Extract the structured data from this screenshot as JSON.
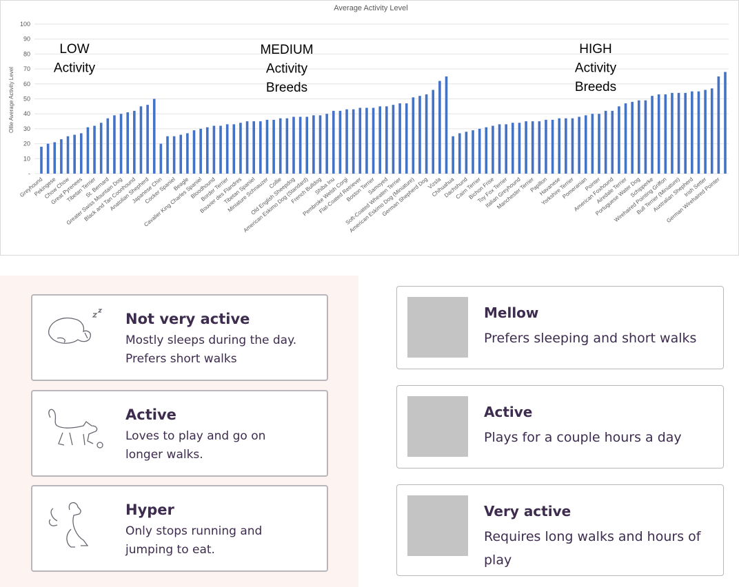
{
  "chart_data": {
    "type": "bar",
    "title": "Average Activity Level",
    "y_label": "Ollie Average Activity Level",
    "color": "#4472c4",
    "grid": true,
    "ylim": [
      0,
      100
    ],
    "yticks": [
      {
        "value": 0,
        "label": "-"
      },
      10,
      20,
      30,
      40,
      50,
      60,
      70,
      80,
      90,
      100
    ],
    "annotations": [
      [
        "LOW",
        "Activity"
      ],
      [
        "MEDIUM",
        "Activity",
        "Breeds"
      ],
      [
        "HIGH",
        "Activity",
        "Breeds"
      ]
    ],
    "categories": [
      "Greyhound",
      null,
      "Pekingese",
      null,
      "Chow Chow",
      null,
      "Great Pyrenees",
      null,
      "Tibetan Terrier",
      null,
      "St. Bernard",
      null,
      "Greater Swiss Mountain Dog",
      null,
      "Black and Tan Coonhound",
      null,
      "Anatolian Shepherd",
      null,
      "Japanese Chin",
      null,
      "Cocker Spaniel",
      null,
      "Beagle",
      null,
      "Cavalier King Charles Spaniel",
      null,
      "Bloodhound",
      null,
      "Border Terrier",
      null,
      "Bouvier des Flandres",
      null,
      "Tibetan Spaniel",
      null,
      "Miniature Schnauzer",
      null,
      "Collie",
      null,
      "Old English Sheepdog",
      null,
      "American Eskimo Dog (Standard)",
      null,
      "French Bulldog",
      null,
      "Shiba Inu",
      null,
      "Pembroke Welsh Corgi",
      null,
      "Flat-Coated Retriever",
      null,
      "Boston Terrier",
      null,
      "Samoyed",
      null,
      "Soft-Coated Wheaten Terrier",
      null,
      "American Eskimo Dog (Miniature)",
      null,
      "German Shepherd Dog",
      null,
      "Vizsla",
      null,
      "Chihuahua",
      null,
      "Dachshund",
      null,
      "Cairn Terrier",
      null,
      "Bichon Frise",
      null,
      "Toy Fox Terrier",
      null,
      "Italian Greyhound",
      null,
      "Manchester Terrier",
      null,
      "Papillon",
      null,
      "Havanese",
      null,
      "Yorkshire Terrier",
      null,
      "Pomeranian",
      null,
      "Pointer",
      null,
      "American Foxhound",
      null,
      "Airedale Terrier",
      null,
      "Portuguese Water Dog",
      null,
      "Schipperke",
      null,
      "Wirehaired Pointing Griffon",
      null,
      "Bull Terrier (Miniature)",
      null,
      "Australian Shepherd",
      null,
      "Irish Setter",
      null,
      "German Wirehaired Pointer",
      null
    ],
    "values": [
      18,
      20,
      21,
      23,
      25,
      26,
      27,
      31,
      32,
      34,
      37,
      39,
      40,
      41,
      42,
      45,
      46,
      50,
      20,
      25,
      25,
      26,
      27,
      29,
      30,
      31,
      32,
      32,
      33,
      33,
      34,
      35,
      35,
      35,
      36,
      36,
      37,
      37,
      38,
      38,
      38,
      39,
      39,
      40,
      42,
      42,
      43,
      43,
      44,
      44,
      44,
      45,
      45,
      46,
      47,
      47,
      51,
      52,
      53,
      56,
      62,
      65,
      25,
      27,
      28,
      29,
      30,
      31,
      32,
      33,
      33,
      34,
      34,
      35,
      35,
      35,
      36,
      36,
      37,
      37,
      37,
      38,
      39,
      40,
      40,
      42,
      42,
      45,
      47,
      48,
      49,
      49,
      52,
      53,
      53,
      54,
      54,
      54,
      55,
      55,
      56,
      57,
      65,
      68
    ]
  },
  "left_cards": [
    {
      "title": "Not very active",
      "lines": [
        "Mostly sleeps during the day.",
        "Prefers short walks"
      ]
    },
    {
      "title": "Active",
      "lines": [
        "Loves to play and go on",
        "longer walks."
      ]
    },
    {
      "title": "Hyper",
      "lines": [
        "Only stops running and",
        "jumping to eat."
      ]
    }
  ],
  "right_cards": [
    {
      "title": "Mellow",
      "lines": [
        "Prefers sleeping and short walks"
      ]
    },
    {
      "title": "Active",
      "lines": [
        "Plays for a couple hours a day"
      ]
    },
    {
      "title": "Very active",
      "lines": [
        "Requires long walks and hours of",
        "play"
      ]
    }
  ]
}
